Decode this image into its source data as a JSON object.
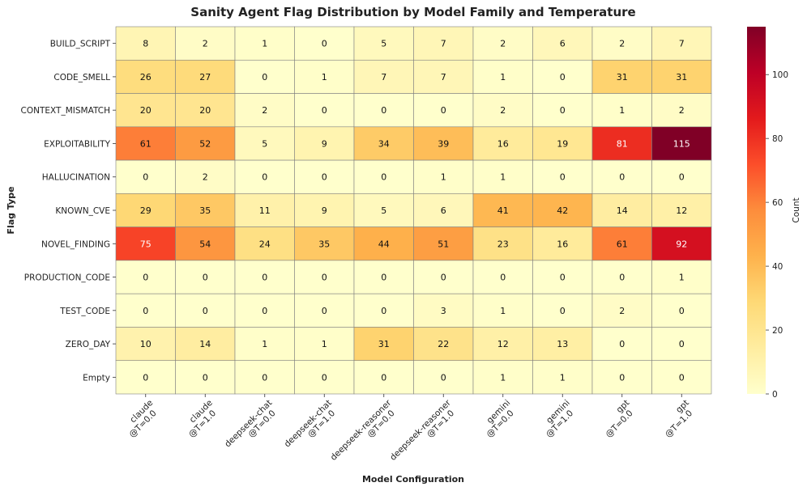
{
  "chart_data": {
    "type": "heatmap",
    "title": "Sanity Agent Flag Distribution by Model Family and Temperature",
    "xlabel": "Model Configuration",
    "ylabel": "Flag Type",
    "colorbar_label": "Count",
    "colorbar_ticks": [
      0,
      20,
      40,
      60,
      80,
      100
    ],
    "value_range": [
      0,
      115
    ],
    "colormap": [
      "#ffffcc",
      "#ffeda0",
      "#fed976",
      "#feb24c",
      "#fd8d3c",
      "#fc4e2a",
      "#e31a1c",
      "#bd0026",
      "#800026"
    ],
    "columns": [
      {
        "line1": "claude",
        "line2": "@T=0.0"
      },
      {
        "line1": "claude",
        "line2": "@T=1.0"
      },
      {
        "line1": "deepseek-chat",
        "line2": "@T=0.0"
      },
      {
        "line1": "deepseek-chat",
        "line2": "@T=1.0"
      },
      {
        "line1": "deepseek-reasoner",
        "line2": "@T=0.0"
      },
      {
        "line1": "deepseek-reasoner",
        "line2": "@T=1.0"
      },
      {
        "line1": "gemini",
        "line2": "@T=0.0"
      },
      {
        "line1": "gemini",
        "line2": "@T=1.0"
      },
      {
        "line1": "gpt",
        "line2": "@T=0.0"
      },
      {
        "line1": "gpt",
        "line2": "@T=1.0"
      }
    ],
    "rows": [
      "BUILD_SCRIPT",
      "CODE_SMELL",
      "CONTEXT_MISMATCH",
      "EXPLOITABILITY",
      "HALLUCINATION",
      "KNOWN_CVE",
      "NOVEL_FINDING",
      "PRODUCTION_CODE",
      "TEST_CODE",
      "ZERO_DAY",
      "Empty"
    ],
    "values": [
      [
        8,
        2,
        1,
        0,
        5,
        7,
        2,
        6,
        2,
        7
      ],
      [
        26,
        27,
        0,
        1,
        7,
        7,
        1,
        0,
        31,
        31
      ],
      [
        20,
        20,
        2,
        0,
        0,
        0,
        2,
        0,
        1,
        2
      ],
      [
        61,
        52,
        5,
        9,
        34,
        39,
        16,
        19,
        81,
        115
      ],
      [
        0,
        2,
        0,
        0,
        0,
        1,
        1,
        0,
        0,
        0
      ],
      [
        29,
        35,
        11,
        9,
        5,
        6,
        41,
        42,
        14,
        12
      ],
      [
        75,
        54,
        24,
        35,
        44,
        51,
        23,
        16,
        61,
        92
      ],
      [
        0,
        0,
        0,
        0,
        0,
        0,
        0,
        0,
        0,
        1
      ],
      [
        0,
        0,
        0,
        0,
        0,
        3,
        1,
        0,
        2,
        0
      ],
      [
        10,
        14,
        1,
        1,
        31,
        22,
        12,
        13,
        0,
        0
      ],
      [
        0,
        0,
        0,
        0,
        0,
        0,
        1,
        1,
        0,
        0
      ]
    ]
  }
}
